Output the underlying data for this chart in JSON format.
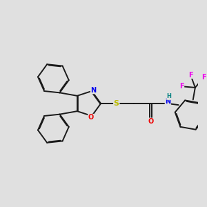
{
  "bg_color": "#e0e0e0",
  "bond_color": "#1a1a1a",
  "bond_lw": 1.4,
  "dbo": 0.022,
  "atom_colors": {
    "N": "#0000ee",
    "O": "#ee0000",
    "S": "#bbbb00",
    "H": "#008080",
    "F": "#ee00ee"
  },
  "fs": 7.0
}
